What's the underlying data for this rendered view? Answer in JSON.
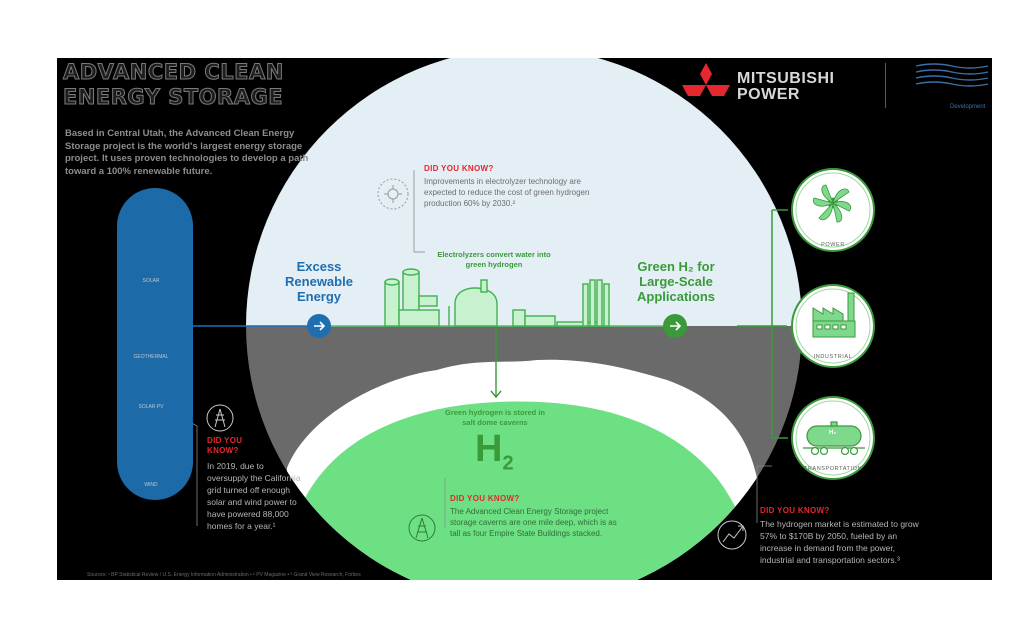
{
  "header": {
    "title_line1": "ADVANCED CLEAN",
    "title_line2": "ENERGY STORAGE",
    "intro": "Based in Central Utah, the Advanced Clean Energy Storage project is the world's largest energy storage project. It uses proven technologies to develop a path toward a 100% renewable future."
  },
  "brand": {
    "name_line1": "MITSUBISHI",
    "name_line2": "POWER",
    "partner_label": "Development",
    "logo_color": "#e52730"
  },
  "sources_left": {
    "items": [
      {
        "icon": "sun-icon",
        "label": "SOLAR"
      },
      {
        "icon": "factory-icon",
        "label": "GEOTHERMAL"
      },
      {
        "icon": "solar-panel-icon",
        "label": "SOLAR PV"
      },
      {
        "icon": "wind-turbine-icon",
        "label": "WIND"
      }
    ]
  },
  "flow": {
    "excess_label": "Excess Renewable Energy",
    "electrolyzers_label": "Electrolyzers convert water into green hydrogen",
    "green_h2_label": "Green H₂ for Large-Scale Applications",
    "storage_label": "Green hydrogen is stored in salt dome caverns",
    "h2_symbol": "H",
    "h2_subscript": "2"
  },
  "did_you_know": {
    "heading": "DID YOU KNOW?",
    "top": "Improvements in electrolyzer technology are expected to reduce the cost of green hydrogen production 60% by 2030.²",
    "left_heading_1": "DID YOU",
    "left_heading_2": "KNOW?",
    "left": "In 2019, due to oversupply the California grid turned off enough solar and wind power to have powered 88,000 homes for a year.¹",
    "bottom": "The Advanced Clean Energy Storage project storage caverns are one mile deep, which is as tall as four Empire State Buildings stacked.",
    "right": "The hydrogen market is estimated to grow 57% to $170B by 2050, fueled by an increase in demand from the power, industrial and transportation sectors.³"
  },
  "applications": [
    {
      "icon": "turbine-icon",
      "label": "POWER"
    },
    {
      "icon": "industrial-factory-icon",
      "label": "INDUSTRIAL"
    },
    {
      "icon": "tank-car-icon",
      "label": "TRANSPORTATION",
      "tank_label": "H₂"
    }
  ],
  "footer": {
    "sources": "Sources: ¹ BP Statistical Review / U.S. Energy Information Administration • ² PV Magazine • ³ Grand View Research, Forbes"
  },
  "colors": {
    "background": "#000000",
    "sky": "#e3eff5",
    "ground": "#6a6a6a",
    "cavern": "#6ee084",
    "blue": "#1e6eb0",
    "green": "#3a9a3a",
    "red": "#e52730"
  }
}
